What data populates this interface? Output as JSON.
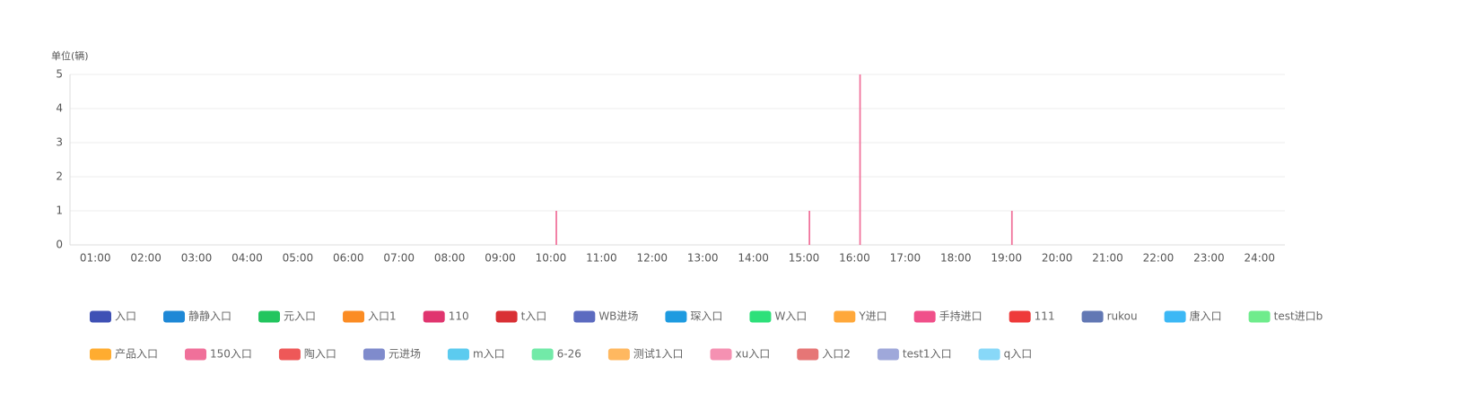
{
  "chart_data": {
    "type": "bar",
    "y_axis_label": "单位(辆)",
    "categories": [
      "01:00",
      "02:00",
      "03:00",
      "04:00",
      "05:00",
      "06:00",
      "07:00",
      "08:00",
      "09:00",
      "10:00",
      "11:00",
      "12:00",
      "13:00",
      "14:00",
      "15:00",
      "16:00",
      "17:00",
      "18:00",
      "19:00",
      "20:00",
      "21:00",
      "22:00",
      "23:00",
      "24:00"
    ],
    "ylim": [
      0,
      5
    ],
    "yticks": [
      0,
      1,
      2,
      3,
      4,
      5
    ],
    "grid": true,
    "series": [
      {
        "name": "入口",
        "color": "#3f51b5",
        "values": [
          0,
          0,
          0,
          0,
          0,
          0,
          0,
          0,
          0,
          0,
          0,
          0,
          0,
          0,
          0,
          0,
          0,
          0,
          0,
          0,
          0,
          0,
          0,
          0
        ]
      },
      {
        "name": "静静入口",
        "color": "#1e88d6",
        "values": [
          0,
          0,
          0,
          0,
          0,
          0,
          0,
          0,
          0,
          0,
          0,
          0,
          0,
          0,
          0,
          0,
          0,
          0,
          0,
          0,
          0,
          0,
          0,
          0
        ]
      },
      {
        "name": "元入口",
        "color": "#22c55e",
        "values": [
          0,
          0,
          0,
          0,
          0,
          0,
          0,
          0,
          0,
          0,
          0,
          0,
          0,
          0,
          0,
          0,
          0,
          0,
          0,
          0,
          0,
          0,
          0,
          0
        ]
      },
      {
        "name": "入口1",
        "color": "#fb8c24",
        "values": [
          0,
          0,
          0,
          0,
          0,
          0,
          0,
          0,
          0,
          0,
          0,
          0,
          0,
          0,
          0,
          0,
          0,
          0,
          0,
          0,
          0,
          0,
          0,
          0
        ]
      },
      {
        "name": "110",
        "color": "#e0356f",
        "values": [
          0,
          0,
          0,
          0,
          0,
          0,
          0,
          0,
          0,
          0,
          0,
          0,
          0,
          0,
          0,
          0,
          0,
          0,
          0,
          0,
          0,
          0,
          0,
          0
        ]
      },
      {
        "name": "t入口",
        "color": "#d93035",
        "values": [
          0,
          0,
          0,
          0,
          0,
          0,
          0,
          0,
          0,
          0,
          0,
          0,
          0,
          0,
          0,
          0,
          0,
          0,
          0,
          0,
          0,
          0,
          0,
          0
        ]
      },
      {
        "name": "WB进场",
        "color": "#5c6bc0",
        "values": [
          0,
          0,
          0,
          0,
          0,
          0,
          0,
          0,
          0,
          0,
          0,
          0,
          0,
          0,
          0,
          0,
          0,
          0,
          0,
          0,
          0,
          0,
          0,
          0
        ]
      },
      {
        "name": "琛入口",
        "color": "#1e9be0",
        "values": [
          0,
          0,
          0,
          0,
          0,
          0,
          0,
          0,
          0,
          0,
          0,
          0,
          0,
          0,
          0,
          0,
          0,
          0,
          0,
          0,
          0,
          0,
          0,
          0
        ]
      },
      {
        "name": "W入口",
        "color": "#2ee07a",
        "values": [
          0,
          0,
          0,
          0,
          0,
          0,
          0,
          0,
          0,
          0,
          0,
          0,
          0,
          0,
          0,
          0,
          0,
          0,
          0,
          0,
          0,
          0,
          0,
          0
        ]
      },
      {
        "name": "Y进口",
        "color": "#ffa83b",
        "values": [
          0,
          0,
          0,
          0,
          0,
          0,
          0,
          0,
          0,
          0,
          0,
          0,
          0,
          0,
          0,
          0,
          0,
          0,
          0,
          0,
          0,
          0,
          0,
          0
        ]
      },
      {
        "name": "手持进口",
        "color": "#f0508a",
        "values": [
          0,
          0,
          0,
          0,
          0,
          0,
          0,
          0,
          0,
          0,
          0,
          0,
          0,
          0,
          0,
          0,
          0,
          0,
          0,
          0,
          0,
          0,
          0,
          0
        ]
      },
      {
        "name": "111",
        "color": "#ee3a3a",
        "values": [
          0,
          0,
          0,
          0,
          0,
          0,
          0,
          0,
          0,
          0,
          0,
          0,
          0,
          0,
          0,
          0,
          0,
          0,
          0,
          0,
          0,
          0,
          0,
          0
        ]
      },
      {
        "name": "rukou",
        "color": "#6278b4",
        "values": [
          0,
          0,
          0,
          0,
          0,
          0,
          0,
          0,
          0,
          0,
          0,
          0,
          0,
          0,
          0,
          0,
          0,
          0,
          0,
          0,
          0,
          0,
          0,
          0
        ]
      },
      {
        "name": "唐入口",
        "color": "#3cb8f5",
        "values": [
          0,
          0,
          0,
          0,
          0,
          0,
          0,
          0,
          0,
          0,
          0,
          0,
          0,
          0,
          0,
          0,
          0,
          0,
          0,
          0,
          0,
          0,
          0,
          0
        ]
      },
      {
        "name": "test进口b",
        "color": "#6fec8c",
        "values": [
          0,
          0,
          0,
          0,
          0,
          0,
          0,
          0,
          0,
          0,
          0,
          0,
          0,
          0,
          0,
          0,
          0,
          0,
          0,
          0,
          0,
          0,
          0,
          0
        ]
      },
      {
        "name": "产品入口",
        "color": "#ffac30",
        "values": [
          0,
          0,
          0,
          0,
          0,
          0,
          0,
          0,
          0,
          0,
          0,
          0,
          0,
          0,
          0,
          0,
          0,
          0,
          0,
          0,
          0,
          0,
          0,
          0
        ]
      },
      {
        "name": "150入口",
        "color": "#f0709a",
        "values": [
          0,
          0,
          0,
          0,
          0,
          0,
          0,
          0,
          0,
          1,
          0,
          0,
          0,
          0,
          1,
          5,
          0,
          0,
          1,
          0,
          0,
          0,
          0,
          0
        ]
      },
      {
        "name": "陶入口",
        "color": "#ee5858",
        "values": [
          0,
          0,
          0,
          0,
          0,
          0,
          0,
          0,
          0,
          0,
          0,
          0,
          0,
          0,
          0,
          0,
          0,
          0,
          0,
          0,
          0,
          0,
          0,
          0
        ]
      },
      {
        "name": "元进场",
        "color": "#7f8bcc",
        "values": [
          0,
          0,
          0,
          0,
          0,
          0,
          0,
          0,
          0,
          0,
          0,
          0,
          0,
          0,
          0,
          0,
          0,
          0,
          0,
          0,
          0,
          0,
          0,
          0
        ]
      },
      {
        "name": "m入口",
        "color": "#5ccbef",
        "values": [
          0,
          0,
          0,
          0,
          0,
          0,
          0,
          0,
          0,
          0,
          0,
          0,
          0,
          0,
          0,
          0,
          0,
          0,
          0,
          0,
          0,
          0,
          0,
          0
        ]
      },
      {
        "name": "6-26",
        "color": "#72eaa8",
        "values": [
          0,
          0,
          0,
          0,
          0,
          0,
          0,
          0,
          0,
          0,
          0,
          0,
          0,
          0,
          0,
          0,
          0,
          0,
          0,
          0,
          0,
          0,
          0,
          0
        ]
      },
      {
        "name": "测试1入口",
        "color": "#ffb860",
        "values": [
          0,
          0,
          0,
          0,
          0,
          0,
          0,
          0,
          0,
          0,
          0,
          0,
          0,
          0,
          0,
          0,
          0,
          0,
          0,
          0,
          0,
          0,
          0,
          0
        ]
      },
      {
        "name": "xu入口",
        "color": "#f591b2",
        "values": [
          0,
          0,
          0,
          0,
          0,
          0,
          0,
          0,
          0,
          0,
          0,
          0,
          0,
          0,
          0,
          0,
          0,
          0,
          0,
          0,
          0,
          0,
          0,
          0
        ]
      },
      {
        "name": "入口2",
        "color": "#e67676",
        "values": [
          0,
          0,
          0,
          0,
          0,
          0,
          0,
          0,
          0,
          0,
          0,
          0,
          0,
          0,
          0,
          0,
          0,
          0,
          0,
          0,
          0,
          0,
          0,
          0
        ]
      },
      {
        "name": "test1入口",
        "color": "#9fa8da",
        "values": [
          0,
          0,
          0,
          0,
          0,
          0,
          0,
          0,
          0,
          0,
          0,
          0,
          0,
          0,
          0,
          0,
          0,
          0,
          0,
          0,
          0,
          0,
          0,
          0
        ]
      },
      {
        "name": "q入口",
        "color": "#88d8f8",
        "values": [
          0,
          0,
          0,
          0,
          0,
          0,
          0,
          0,
          0,
          0,
          0,
          0,
          0,
          0,
          0,
          0,
          0,
          0,
          0,
          0,
          0,
          0,
          0,
          0
        ]
      }
    ]
  }
}
